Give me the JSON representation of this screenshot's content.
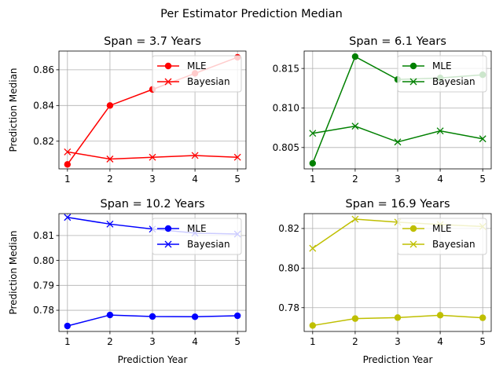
{
  "figure_title": "Per Estimator Prediction Median",
  "chart_data": [
    {
      "type": "line",
      "title": "Span = 3.7 Years",
      "xlabel": "",
      "ylabel": "Prediction Median",
      "x": [
        1,
        2,
        3,
        4,
        5
      ],
      "ylim": [
        0.8045,
        0.8705
      ],
      "yticks": [
        0.82,
        0.84,
        0.86
      ],
      "yticklabels": [
        "0.82",
        "0.84",
        "0.86"
      ],
      "grid": true,
      "legend_position": "upper right",
      "series": [
        {
          "name": "MLE",
          "marker": "circle",
          "color": "#ff0000",
          "values": [
            0.807,
            0.84,
            0.849,
            0.858,
            0.867
          ]
        },
        {
          "name": "Bayesian",
          "marker": "x",
          "color": "#ff0000",
          "values": [
            0.814,
            0.81,
            0.811,
            0.812,
            0.811
          ]
        }
      ]
    },
    {
      "type": "line",
      "title": "Span = 6.1 Years",
      "xlabel": "",
      "ylabel": "",
      "x": [
        1,
        2,
        3,
        4,
        5
      ],
      "ylim": [
        0.8023,
        0.8172
      ],
      "yticks": [
        0.805,
        0.81,
        0.815
      ],
      "yticklabels": [
        "0.805",
        "0.810",
        "0.815"
      ],
      "grid": true,
      "legend_position": "upper right",
      "series": [
        {
          "name": "MLE",
          "marker": "circle",
          "color": "#008000",
          "values": [
            0.803,
            0.8165,
            0.8136,
            0.8138,
            0.8142
          ]
        },
        {
          "name": "Bayesian",
          "marker": "x",
          "color": "#008000",
          "values": [
            0.8068,
            0.8077,
            0.8057,
            0.8071,
            0.8061
          ]
        }
      ]
    },
    {
      "type": "line",
      "title": "Span = 10.2 Years",
      "xlabel": "Prediction Year",
      "ylabel": "Prediction Median",
      "x": [
        1,
        2,
        3,
        4,
        5
      ],
      "ylim": [
        0.7715,
        0.8188
      ],
      "yticks": [
        0.78,
        0.79,
        0.8,
        0.81
      ],
      "yticklabels": [
        "0.78",
        "0.79",
        "0.80",
        "0.81"
      ],
      "grid": true,
      "legend_position": "upper right",
      "series": [
        {
          "name": "MLE",
          "marker": "circle",
          "color": "#0000ff",
          "values": [
            0.7737,
            0.7781,
            0.7775,
            0.7774,
            0.7778
          ]
        },
        {
          "name": "Bayesian",
          "marker": "x",
          "color": "#0000ff",
          "values": [
            0.8173,
            0.8146,
            0.8126,
            0.811,
            0.8106
          ]
        }
      ]
    },
    {
      "type": "line",
      "title": "Span = 16.9 Years",
      "xlabel": "Prediction Year",
      "ylabel": "",
      "x": [
        1,
        2,
        3,
        4,
        5
      ],
      "ylim": [
        0.768,
        0.8275
      ],
      "yticks": [
        0.78,
        0.8,
        0.82
      ],
      "yticklabels": [
        "0.78",
        "0.80",
        "0.82"
      ],
      "grid": true,
      "legend_position": "upper right",
      "series": [
        {
          "name": "MLE",
          "marker": "circle",
          "color": "#bfbf00",
          "values": [
            0.771,
            0.7745,
            0.775,
            0.7762,
            0.7749
          ]
        },
        {
          "name": "Bayesian",
          "marker": "x",
          "color": "#bfbf00",
          "values": [
            0.81,
            0.8247,
            0.8232,
            0.822,
            0.821
          ]
        }
      ]
    }
  ]
}
